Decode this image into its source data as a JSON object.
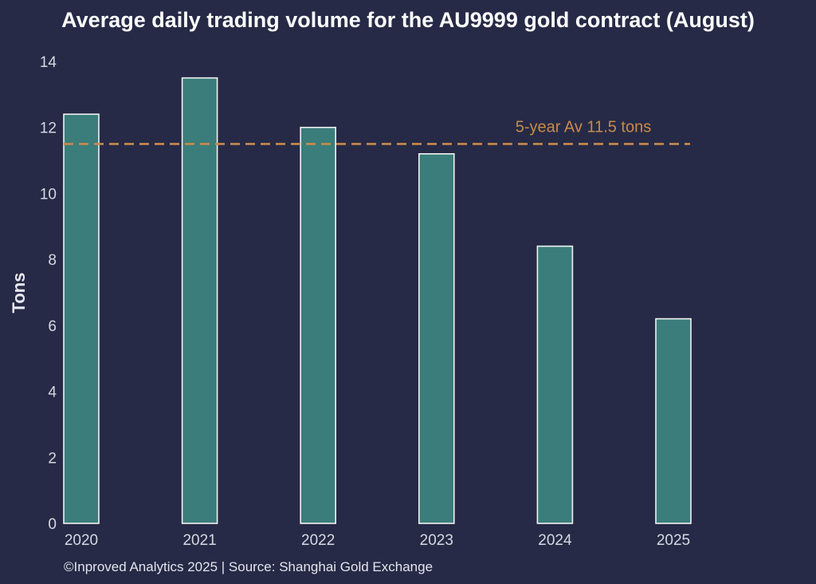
{
  "colors": {
    "background": "#262a46",
    "bar_fill": "#3a7d7b",
    "bar_edge": "#f2f2f2",
    "reference_line": "#c98a4b",
    "text": "#d6d8e2"
  },
  "chart_data": {
    "type": "bar",
    "title": "Average daily trading volume for the AU9999 gold contract (August)",
    "xlabel": "",
    "ylabel": "Tons",
    "categories": [
      "2020",
      "2021",
      "2022",
      "2023",
      "2024",
      "2025"
    ],
    "values": [
      12.4,
      13.5,
      12.0,
      11.2,
      8.4,
      6.2
    ],
    "ylim": [
      0,
      14
    ],
    "yticks": [
      0,
      2,
      4,
      6,
      8,
      10,
      12,
      14
    ],
    "grid": false,
    "reference_line": {
      "value": 11.5,
      "label": "5-year Av 11.5 tons",
      "style": "dashed"
    },
    "source": "©Inproved Analytics 2025 | Source: Shanghai Gold Exchange"
  }
}
